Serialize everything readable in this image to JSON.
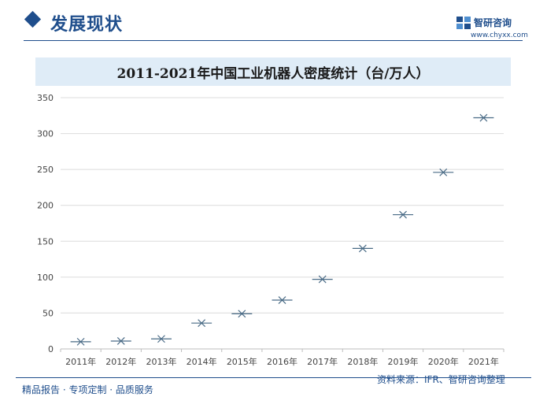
{
  "header": {
    "section_title": "发展现状",
    "brand_name": "智研咨询",
    "brand_url": "www.chyxx.com"
  },
  "colors": {
    "brand": "#1f4e8c",
    "title_band": "#dfecf7",
    "marker": "#4a6b86",
    "grid": "#dcdcdc"
  },
  "chart_data": {
    "type": "scatter",
    "title": "2011-2021年中国工业机器人密度统计（台/万人）",
    "marker": "x-with-dash",
    "categories": [
      "2011年",
      "2012年",
      "2013年",
      "2014年",
      "2015年",
      "2016年",
      "2017年",
      "2018年",
      "2019年",
      "2020年",
      "2021年"
    ],
    "values": [
      10,
      11,
      14,
      36,
      49,
      68,
      97,
      140,
      187,
      246,
      322
    ],
    "ylim": [
      0,
      350
    ],
    "yticks": [
      0,
      50,
      100,
      150,
      200,
      250,
      300,
      350
    ],
    "grid": true,
    "legend": "none"
  },
  "footer": {
    "left_text": "精品报告 · 专项定制 · 品质服务",
    "source_text": "资料来源：IFR、智研咨询整理"
  }
}
